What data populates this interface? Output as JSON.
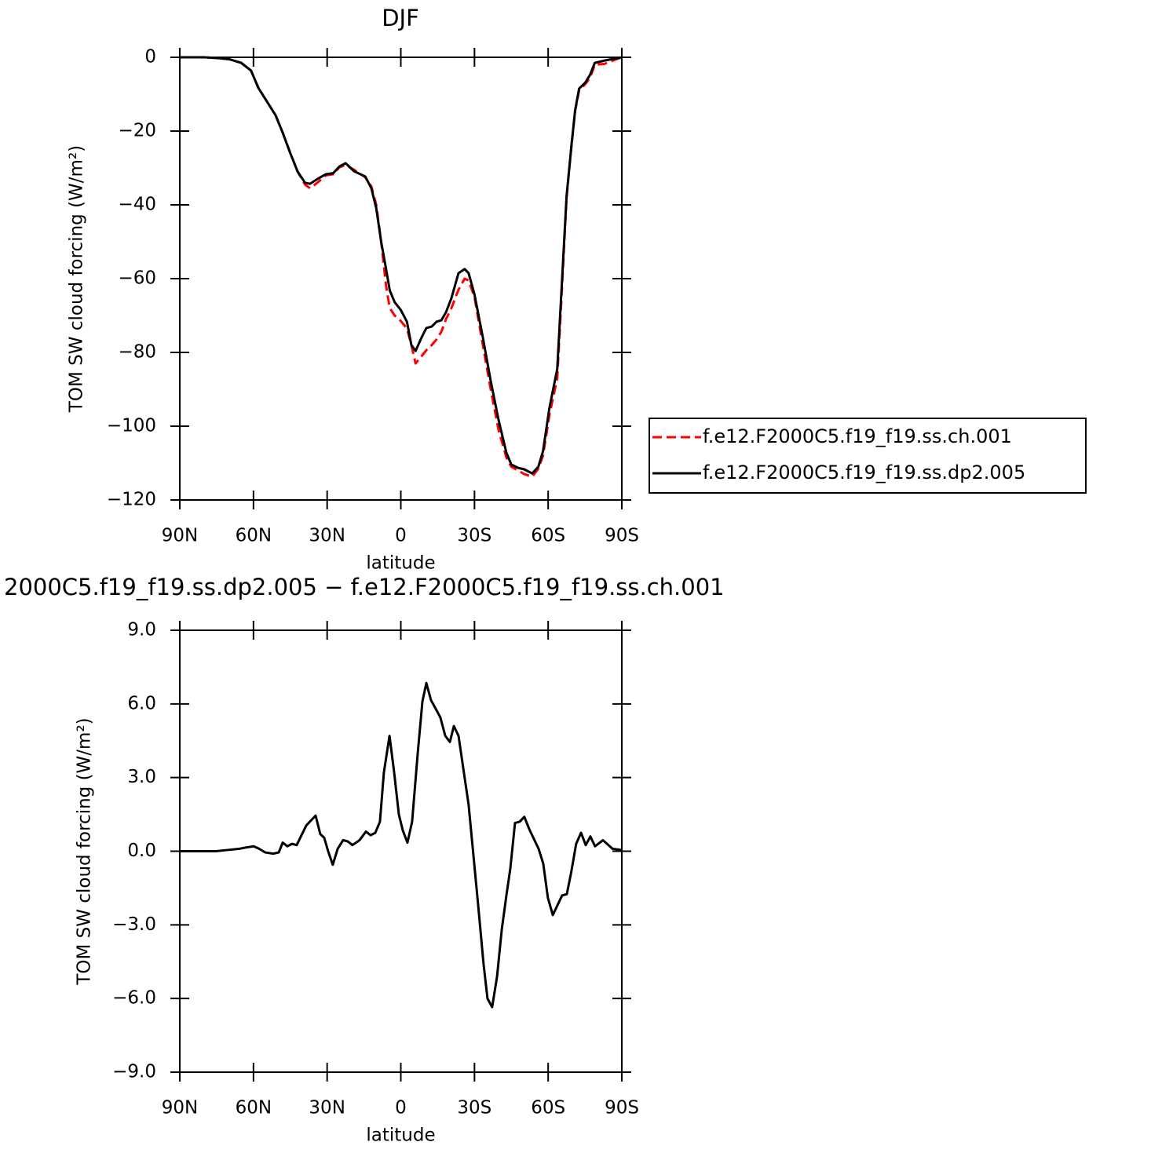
{
  "chart_data": [
    {
      "type": "line",
      "title": "DJF",
      "xlabel": "latitude",
      "ylabel": "TOM SW cloud forcing (W/m²)",
      "x": [
        90,
        80,
        75,
        70,
        65,
        61,
        58,
        54.5,
        51,
        48,
        45,
        42,
        39,
        37,
        34,
        30.5,
        27.5,
        25,
        22.5,
        19,
        14.5,
        12,
        10,
        8,
        6,
        4.5,
        2.5,
        0,
        -2.5,
        -4.3,
        -6,
        -8.5,
        -10.4,
        -12.6,
        -14.5,
        -16.5,
        -18.4,
        -20.6,
        -23.5,
        -26,
        -27.6,
        -30,
        -33.4,
        -36.6,
        -39.8,
        -43,
        -45,
        -47.8,
        -50.3,
        -53.5,
        -56,
        -57.9,
        -60.5,
        -63.7,
        -65.6,
        -67.5,
        -69.5,
        -71,
        -72.6,
        -75.2,
        -77.1,
        -79,
        -82.9,
        -86.7,
        -90
      ],
      "series": [
        {
          "name": "f.e12.F2000C5.f19_f19.ss.ch.001",
          "color": "#ff0000",
          "style": "dashed",
          "values": [
            0,
            0,
            -0.2,
            -0.5,
            -1.5,
            -3.6,
            -8.3,
            -12,
            -15.7,
            -20.6,
            -26,
            -31,
            -34.5,
            -35.5,
            -34,
            -32,
            -31.7,
            -29.8,
            -29.2,
            -30.5,
            -32.5,
            -35,
            -40,
            -50,
            -62,
            -68,
            -70,
            -71.5,
            -73.5,
            -78,
            -83,
            -81,
            -79.4,
            -78,
            -76.5,
            -74.4,
            -71,
            -68,
            -63,
            -60,
            -60.5,
            -65,
            -78,
            -90,
            -101,
            -108.5,
            -111,
            -112,
            -113,
            -113.7,
            -111.5,
            -108,
            -97,
            -87,
            -63,
            -38,
            -24,
            -14.5,
            -9,
            -7.2,
            -5.5,
            -2,
            -1.8,
            -0.8,
            0
          ]
        },
        {
          "name": "f.e12.F2000C5.f19_f19.ss.dp2.005",
          "color": "#000000",
          "style": "solid",
          "values": [
            0,
            0,
            -0.2,
            -0.5,
            -1.5,
            -3.6,
            -8.3,
            -12,
            -15.7,
            -20.6,
            -26,
            -31,
            -34,
            -34.3,
            -33,
            -31.7,
            -31.4,
            -29.6,
            -28.7,
            -30.9,
            -32.3,
            -35.5,
            -40.9,
            -50,
            -57.4,
            -63.2,
            -66.4,
            -68.5,
            -71.7,
            -78,
            -79.6,
            -75.9,
            -73.4,
            -73,
            -71.7,
            -71.3,
            -69.1,
            -65.3,
            -58.5,
            -57.4,
            -58.5,
            -64.3,
            -75.9,
            -87.7,
            -98.3,
            -107.2,
            -110.4,
            -111.3,
            -111.7,
            -112.8,
            -111,
            -106.8,
            -95.1,
            -84.5,
            -61.1,
            -37.7,
            -23.8,
            -14.3,
            -8.5,
            -6.8,
            -4.7,
            -1.5,
            -0.9,
            -0.4,
            0
          ]
        }
      ],
      "xlim": [
        90,
        -90
      ],
      "xticks": [
        {
          "value": 90,
          "label": "90N"
        },
        {
          "value": 60,
          "label": "60N"
        },
        {
          "value": 30,
          "label": "30N"
        },
        0,
        {
          "value": -30,
          "label": "30S"
        },
        {
          "value": -60,
          "label": "60S"
        },
        {
          "value": -90,
          "label": "90S"
        }
      ],
      "ylim": [
        -120,
        0
      ],
      "yticks": [
        0,
        {
          "value": -20,
          "label": "−20"
        },
        {
          "value": -40,
          "label": "−40"
        },
        {
          "value": -60,
          "label": "−60"
        },
        {
          "value": -80,
          "label": "−80"
        },
        {
          "value": -100,
          "label": "−100"
        },
        {
          "value": -120,
          "label": "−120"
        }
      ],
      "legend": "right"
    },
    {
      "type": "line",
      "title": "2000C5.f19_f19.ss.dp2.005 − f.e12.F2000C5.f19_f19.ss.ch.001",
      "xlabel": "latitude",
      "ylabel": "TOM SW cloud forcing (W/m²)",
      "x": [
        90,
        75.3,
        70.5,
        65.7,
        63.1,
        59.9,
        57.7,
        55.2,
        52,
        49.7,
        48.1,
        46.2,
        44.3,
        42.4,
        38.5,
        34.7,
        32.8,
        31.2,
        29.6,
        27.7,
        25.7,
        23.5,
        21.6,
        19.7,
        16.8,
        14.2,
        12.3,
        10.4,
        8.5,
        6.9,
        4.6,
        2.7,
        0.8,
        -0.8,
        -2.7,
        -4.6,
        -6.9,
        -8.8,
        -10.4,
        -12.3,
        -14.5,
        -16.1,
        -18.1,
        -20,
        -21.6,
        -23.5,
        -25.4,
        -27.6,
        -29.6,
        -31.5,
        -33.7,
        -35.3,
        -37.2,
        -39.2,
        -41.1,
        -43,
        -44.6,
        -46.5,
        -48.4,
        -50.3,
        -52.3,
        -56.1,
        -58,
        -59.9,
        -61.9,
        -63.8,
        -65.7,
        -67.6,
        -69.5,
        -71.4,
        -73.4,
        -75.3,
        -77.2,
        -79.1,
        -82.3,
        -86.2,
        -90
      ],
      "color": "#000000",
      "values": [
        0,
        0,
        0.05,
        0.1,
        0.15,
        0.2,
        0.1,
        -0.05,
        -0.1,
        -0.05,
        0.35,
        0.2,
        0.3,
        0.25,
        1.05,
        1.45,
        0.7,
        0.55,
        0,
        -0.55,
        0.1,
        0.45,
        0.4,
        0.25,
        0.45,
        0.8,
        0.65,
        0.75,
        1.2,
        3.2,
        4.7,
        3.2,
        1.5,
        0.85,
        0.35,
        1.2,
        4,
        6.1,
        6.85,
        6.15,
        5.75,
        5.45,
        4.7,
        4.45,
        5.1,
        4.7,
        3.4,
        1.9,
        -0.2,
        -2.2,
        -4.6,
        -6,
        -6.35,
        -5.1,
        -3.2,
        -1.8,
        -0.7,
        1.15,
        1.2,
        1.4,
        0.9,
        0.1,
        -0.5,
        -1.9,
        -2.6,
        -2.2,
        -1.8,
        -1.75,
        -0.8,
        0.3,
        0.75,
        0.25,
        0.6,
        0.2,
        0.45,
        0.1,
        0.05
      ],
      "xlim": [
        90,
        -90
      ],
      "xticks": [
        {
          "value": 90,
          "label": "90N"
        },
        {
          "value": 60,
          "label": "60N"
        },
        {
          "value": 30,
          "label": "30N"
        },
        0,
        {
          "value": -30,
          "label": "30S"
        },
        {
          "value": -60,
          "label": "60S"
        },
        {
          "value": -90,
          "label": "90S"
        }
      ],
      "ylim": [
        -9,
        9
      ],
      "yticks": [
        {
          "value": 9,
          "label": "9.0"
        },
        {
          "value": 6,
          "label": "6.0"
        },
        {
          "value": 3,
          "label": "3.0"
        },
        {
          "value": 0,
          "label": "0.0"
        },
        {
          "value": -3,
          "label": "−3.0"
        },
        {
          "value": -6,
          "label": "−6.0"
        },
        {
          "value": -9,
          "label": "−9.0"
        }
      ]
    }
  ]
}
